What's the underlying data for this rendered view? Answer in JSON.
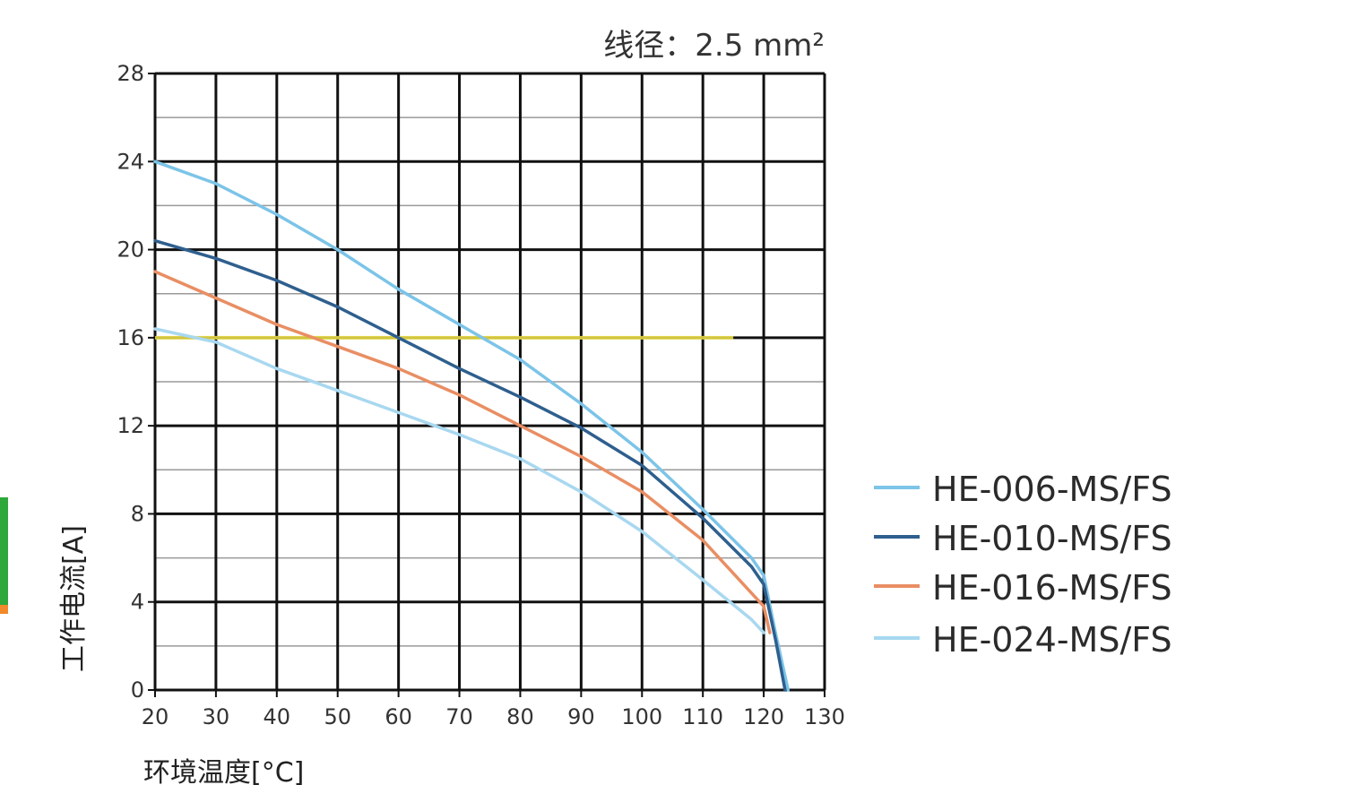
{
  "chart_data": {
    "type": "line",
    "annotation": "线径：2.5 mm²",
    "xlabel": "环境温度[°C]",
    "ylabel": "工作电流[A]",
    "xlim": [
      20,
      130
    ],
    "ylim": [
      0,
      28
    ],
    "x_ticks": [
      20,
      30,
      40,
      50,
      60,
      70,
      80,
      90,
      100,
      110,
      120,
      130
    ],
    "y_ticks": [
      0,
      4,
      8,
      12,
      16,
      20,
      24,
      28
    ],
    "grid": true,
    "legend_position": "right",
    "series": [
      {
        "name": "HE-006-MS/FS",
        "color": "#7cc4e8",
        "points": [
          [
            20,
            24
          ],
          [
            30,
            23
          ],
          [
            40,
            21.6
          ],
          [
            50,
            20
          ],
          [
            60,
            18.2
          ],
          [
            70,
            16.6
          ],
          [
            80,
            15
          ],
          [
            90,
            13
          ],
          [
            100,
            10.8
          ],
          [
            110,
            8.2
          ],
          [
            118,
            6
          ],
          [
            120,
            5.2
          ],
          [
            122,
            2.5
          ],
          [
            124,
            0
          ]
        ]
      },
      {
        "name": "HE-010-MS/FS",
        "color": "#2e5f8e",
        "points": [
          [
            20,
            20.4
          ],
          [
            30,
            19.6
          ],
          [
            40,
            18.6
          ],
          [
            50,
            17.4
          ],
          [
            60,
            16
          ],
          [
            70,
            14.6
          ],
          [
            80,
            13.3
          ],
          [
            90,
            11.9
          ],
          [
            100,
            10.2
          ],
          [
            110,
            7.8
          ],
          [
            118,
            5.6
          ],
          [
            120,
            4.8
          ],
          [
            122,
            2.2
          ],
          [
            123.5,
            0
          ]
        ]
      },
      {
        "name": "HE-016-MS/FS",
        "color": "#e98e63",
        "points": [
          [
            20,
            19
          ],
          [
            30,
            17.8
          ],
          [
            40,
            16.6
          ],
          [
            50,
            15.6
          ],
          [
            60,
            14.6
          ],
          [
            70,
            13.4
          ],
          [
            80,
            12
          ],
          [
            90,
            10.6
          ],
          [
            100,
            9
          ],
          [
            110,
            6.8
          ],
          [
            118,
            4.4
          ],
          [
            120,
            3.8
          ],
          [
            121,
            2.6
          ]
        ]
      },
      {
        "name": "HE-024-MS/FS",
        "color": "#a8d8f0",
        "points": [
          [
            20,
            16.4
          ],
          [
            30,
            15.8
          ],
          [
            40,
            14.6
          ],
          [
            50,
            13.6
          ],
          [
            60,
            12.6
          ],
          [
            70,
            11.6
          ],
          [
            80,
            10.5
          ],
          [
            90,
            9
          ],
          [
            100,
            7.2
          ],
          [
            110,
            5
          ],
          [
            118,
            3.2
          ],
          [
            120,
            2.6
          ]
        ]
      }
    ],
    "reference_line": {
      "y": 16,
      "color": "#f2e44a"
    }
  }
}
